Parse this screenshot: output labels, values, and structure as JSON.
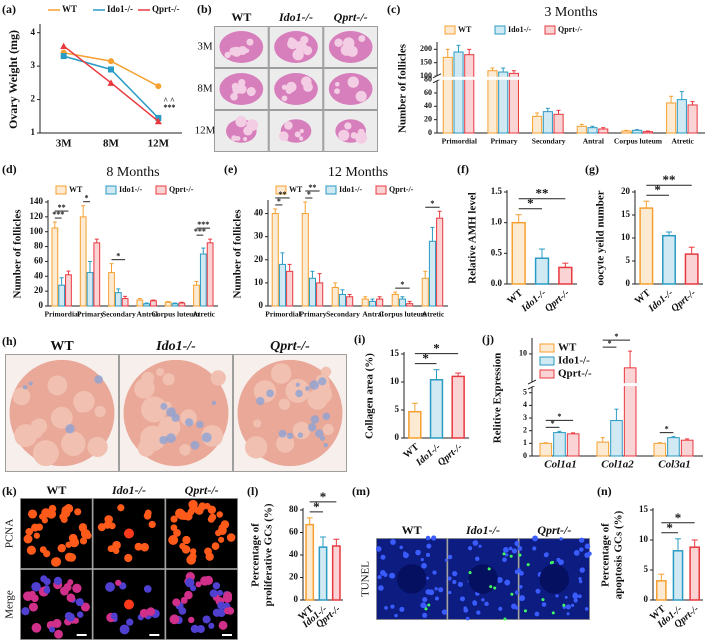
{
  "chart_data": [
    {
      "type": "line",
      "panel": "(a)",
      "ylabel": "Ovary Weight (mg)",
      "categories": [
        "3M",
        "8M",
        "12M"
      ],
      "ylim": [
        1,
        4.2
      ],
      "yticks": [
        1,
        2,
        3,
        4
      ],
      "series": [
        {
          "name": "WT",
          "color": "#f5a030",
          "values": [
            3.4,
            3.15,
            2.4
          ]
        },
        {
          "name": "Ido1-/-",
          "color": "#2a9bc4",
          "values": [
            3.3,
            2.9,
            1.45
          ]
        },
        {
          "name": "Qprt-/-",
          "color": "#e8383f",
          "values": [
            3.6,
            2.5,
            1.35
          ]
        }
      ],
      "annotations": [
        "^ ^",
        "***"
      ]
    },
    {
      "type": "bar",
      "panel": "(c)",
      "title": "3 Months",
      "ylabel": "Number of follicles",
      "categories": [
        "Primordial",
        "Primary",
        "Secondary",
        "Antral",
        "Corpus luteum",
        "Atretic"
      ],
      "ylim": [
        0,
        220
      ],
      "ybreak": [
        80,
        100
      ],
      "yticks": [
        0,
        20,
        40,
        60,
        80,
        100,
        150,
        200
      ],
      "series": [
        {
          "name": "WT",
          "color": "#f5a030",
          "values": [
            170,
            120,
            25,
            10,
            3,
            45
          ],
          "errors": [
            30,
            10,
            5,
            3,
            1,
            10
          ]
        },
        {
          "name": "Ido1-/-",
          "color": "#2a9bc4",
          "values": [
            190,
            115,
            32,
            8,
            4,
            50
          ],
          "errors": [
            25,
            15,
            5,
            2,
            1,
            12
          ]
        },
        {
          "name": "Qprt-/-",
          "color": "#e8383f",
          "values": [
            180,
            110,
            28,
            6,
            2,
            42
          ],
          "errors": [
            20,
            10,
            6,
            2,
            1,
            5
          ]
        }
      ]
    },
    {
      "type": "bar",
      "panel": "(d)",
      "title": "8 Months",
      "ylabel": "Number of follicles",
      "categories": [
        "Primordial",
        "Primary",
        "Secondary",
        "Antral",
        "Corpus luteum",
        "Atretic"
      ],
      "ylim": [
        0,
        140
      ],
      "yticks": [
        0,
        20,
        40,
        60,
        80,
        100,
        120,
        140
      ],
      "series": [
        {
          "name": "WT",
          "color": "#f5a030",
          "values": [
            105,
            120,
            45,
            8,
            5,
            28
          ],
          "errors": [
            8,
            15,
            12,
            2,
            1,
            5
          ]
        },
        {
          "name": "Ido1-/-",
          "color": "#2a9bc4",
          "values": [
            28,
            45,
            18,
            3,
            3,
            70
          ],
          "errors": [
            10,
            15,
            5,
            1,
            1,
            8
          ]
        },
        {
          "name": "Qprt-/-",
          "color": "#e8383f",
          "values": [
            42,
            85,
            10,
            7,
            4,
            85
          ],
          "errors": [
            5,
            5,
            3,
            1,
            1,
            5
          ]
        }
      ],
      "significance": [
        {
          "category": 0,
          "bars": [
            0,
            1
          ],
          "label": "***"
        },
        {
          "category": 0,
          "bars": [
            0,
            2
          ],
          "label": "**"
        },
        {
          "category": 1,
          "bars": [
            0,
            1
          ],
          "label": "*"
        },
        {
          "category": 2,
          "bars": [
            0,
            2
          ],
          "label": "*"
        },
        {
          "category": 5,
          "bars": [
            0,
            1
          ],
          "label": "***"
        },
        {
          "category": 5,
          "bars": [
            0,
            2
          ],
          "label": "***"
        }
      ]
    },
    {
      "type": "bar",
      "panel": "(e)",
      "title": "12 Months",
      "ylabel": "Number of follicles",
      "categories": [
        "Primordial",
        "Primary",
        "Secondary",
        "Antral",
        "Corpus luteum",
        "Atretic"
      ],
      "ylim": [
        0,
        45
      ],
      "yticks": [
        0,
        10,
        20,
        30,
        40
      ],
      "series": [
        {
          "name": "WT",
          "color": "#f5a030",
          "values": [
            40,
            40,
            8,
            3,
            5,
            12
          ],
          "errors": [
            2,
            5,
            2,
            1,
            1,
            3
          ]
        },
        {
          "name": "Ido1-/-",
          "color": "#2a9bc4",
          "values": [
            18,
            12,
            5,
            2,
            3,
            28
          ],
          "errors": [
            5,
            3,
            2,
            1,
            1,
            6
          ]
        },
        {
          "name": "Qprt-/-",
          "color": "#e8383f",
          "values": [
            15,
            10,
            4,
            3,
            1,
            38
          ],
          "errors": [
            3,
            4,
            1,
            1,
            1,
            3
          ]
        }
      ],
      "significance": [
        {
          "category": 0,
          "bars": [
            0,
            1
          ],
          "label": "*"
        },
        {
          "category": 0,
          "bars": [
            0,
            2
          ],
          "label": "**"
        },
        {
          "category": 1,
          "bars": [
            0,
            1
          ],
          "label": "*"
        },
        {
          "category": 1,
          "bars": [
            0,
            2
          ],
          "label": "**"
        },
        {
          "category": 4,
          "bars": [
            0,
            2
          ],
          "label": "*"
        },
        {
          "category": 5,
          "bars": [
            0,
            2
          ],
          "label": "*"
        }
      ]
    },
    {
      "type": "bar",
      "panel": "(f)",
      "ylabel": "Relative AMH level",
      "categories": [
        "WT",
        "Ido1-/-",
        "Qprt-/-"
      ],
      "colors": [
        "#f5a030",
        "#2a9bc4",
        "#e8383f"
      ],
      "values": [
        1.0,
        0.42,
        0.27
      ],
      "errors": [
        0.13,
        0.15,
        0.07
      ],
      "ylim": [
        0,
        1.5
      ],
      "yticks": [
        {
          "value": 0,
          "label": "0.0"
        },
        {
          "value": 0.5,
          "label": "0.5"
        },
        {
          "value": 1,
          "label": "1.0"
        },
        {
          "value": 1.5,
          "label": "1.5"
        }
      ],
      "significance": [
        {
          "bars": [
            0,
            1
          ],
          "label": "*"
        },
        {
          "bars": [
            0,
            2
          ],
          "label": "**"
        }
      ]
    },
    {
      "type": "bar",
      "panel": "(g)",
      "ylabel": "oocyte yeild number",
      "categories": [
        "WT",
        "Ido1-/-",
        "Qprt-/-"
      ],
      "colors": [
        "#f5a030",
        "#2a9bc4",
        "#e8383f"
      ],
      "values": [
        16.5,
        10.5,
        6.5
      ],
      "errors": [
        1.5,
        0.8,
        1.5
      ],
      "ylim": [
        0,
        20
      ],
      "yticks": [
        0,
        5,
        10,
        15,
        20
      ],
      "significance": [
        {
          "bars": [
            0,
            1
          ],
          "label": "*"
        },
        {
          "bars": [
            0,
            2
          ],
          "label": "**"
        }
      ]
    },
    {
      "type": "bar",
      "panel": "(i)",
      "ylabel": "Collagen area (%)",
      "categories": [
        "WT",
        "Ido1-/-",
        "Qprt-/-"
      ],
      "colors": [
        "#f5a030",
        "#2a9bc4",
        "#e8383f"
      ],
      "values": [
        4.7,
        10.4,
        11.0
      ],
      "errors": [
        1.5,
        1.8,
        0.6
      ],
      "ylim": [
        0,
        15
      ],
      "yticks": [
        0,
        5,
        10,
        15
      ],
      "significance": [
        {
          "bars": [
            0,
            1
          ],
          "label": "*"
        },
        {
          "bars": [
            0,
            2
          ],
          "label": "*"
        }
      ]
    },
    {
      "type": "bar",
      "panel": "(j)",
      "ylabel": "Relitive Expression",
      "categories": [
        "Col1a1",
        "Col1a2",
        "Col3a1"
      ],
      "ylim": [
        0,
        11
      ],
      "ybreak": [
        5.5,
        8
      ],
      "yticks": [
        0,
        1,
        2,
        3,
        4,
        5,
        10
      ],
      "series": [
        {
          "name": "WT",
          "color": "#f5a030",
          "values": [
            1.0,
            1.1,
            1.0
          ],
          "errors": [
            0.05,
            0.35,
            0.05
          ]
        },
        {
          "name": "Ido1-/-",
          "color": "#2a9bc4",
          "values": [
            1.85,
            2.8,
            1.45
          ],
          "errors": [
            0.1,
            0.9,
            0.08
          ]
        },
        {
          "name": "Qprt-/-",
          "color": "#e8383f",
          "values": [
            1.75,
            9,
            1.25
          ],
          "errors": [
            0.08,
            1.2,
            0.1
          ]
        }
      ],
      "legend": "upper left",
      "significance": [
        {
          "category": 0,
          "bars": [
            0,
            1
          ],
          "label": "*"
        },
        {
          "category": 0,
          "bars": [
            0,
            2
          ],
          "label": "*"
        },
        {
          "category": 1,
          "bars": [
            0,
            1
          ],
          "label": "*"
        },
        {
          "category": 1,
          "bars": [
            0,
            2
          ],
          "label": "*"
        },
        {
          "category": 2,
          "bars": [
            0,
            1
          ],
          "label": "*"
        }
      ]
    },
    {
      "type": "bar",
      "panel": "(l)",
      "ylabel": [
        "Percentage of",
        "proliferative GCs (%)"
      ],
      "categories": [
        "WT",
        "Ido1-/-",
        "Qprt-/-"
      ],
      "colors": [
        "#f5a030",
        "#2a9bc4",
        "#e8383f"
      ],
      "values": [
        67,
        47,
        48
      ],
      "errors": [
        6,
        9,
        6
      ],
      "ylim": [
        0,
        80
      ],
      "yticks": [
        0,
        20,
        40,
        60,
        80
      ],
      "significance": [
        {
          "bars": [
            0,
            1
          ],
          "label": "*"
        },
        {
          "bars": [
            0,
            2
          ],
          "label": "*"
        }
      ]
    },
    {
      "type": "bar",
      "panel": "(n)",
      "ylabel": [
        "Percentage of",
        "apoptosis GCs (%)"
      ],
      "categories": [
        "WT",
        "Ido1-/-",
        "Qprt-/-"
      ],
      "colors": [
        "#f5a030",
        "#2a9bc4",
        "#e8383f"
      ],
      "values": [
        3.2,
        8.2,
        8.8
      ],
      "errors": [
        1.1,
        2.0,
        1.2
      ],
      "ylim": [
        0,
        15
      ],
      "yticks": [
        0,
        5,
        10,
        15
      ],
      "significance": [
        {
          "bars": [
            0,
            1
          ],
          "label": "*"
        },
        {
          "bars": [
            0,
            2
          ],
          "label": "*"
        }
      ]
    }
  ],
  "panels": [
    {
      "panel": "(b)",
      "columns": [
        "WT",
        "Ido1-/-",
        "Qprt-/-"
      ],
      "rows": [
        "3M",
        "8M",
        "12M"
      ]
    },
    {
      "panel": "(h)",
      "columns": [
        "WT",
        "Ido1-/-",
        "Qprt-/-"
      ]
    },
    {
      "panel": "(k)",
      "columns": [
        "WT",
        "Ido1-/-",
        "Qprt-/-"
      ],
      "rows": [
        "PCNA",
        "Merge"
      ]
    },
    {
      "panel": "(m)",
      "columns": [
        "WT",
        "Ido1-/-",
        "Qprt-/-"
      ],
      "rows": [
        "TUNEL"
      ]
    }
  ]
}
